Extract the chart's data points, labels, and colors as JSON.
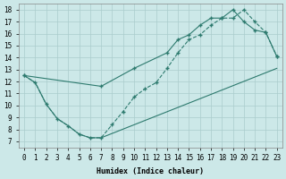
{
  "xlabel": "Humidex (Indice chaleur)",
  "background_color": "#cce8e8",
  "grid_color": "#aacccc",
  "line_color": "#2d7a6e",
  "xlim": [
    -0.5,
    23.5
  ],
  "ylim": [
    6.5,
    18.5
  ],
  "xticks": [
    0,
    1,
    2,
    3,
    4,
    5,
    6,
    7,
    8,
    9,
    10,
    11,
    12,
    13,
    14,
    15,
    16,
    17,
    18,
    19,
    20,
    21,
    22,
    23
  ],
  "yticks": [
    7,
    8,
    9,
    10,
    11,
    12,
    13,
    14,
    15,
    16,
    17,
    18
  ],
  "dashed_curve_x": [
    0,
    1,
    2,
    3,
    4,
    5,
    6,
    7,
    8,
    9,
    10,
    11,
    12,
    13,
    14,
    15,
    16,
    17,
    18,
    19,
    20,
    21,
    22,
    23
  ],
  "dashed_curve_y": [
    12.5,
    11.9,
    10.1,
    8.9,
    8.3,
    7.6,
    7.3,
    7.3,
    8.4,
    9.5,
    10.7,
    11.4,
    11.9,
    13.1,
    14.4,
    15.5,
    15.9,
    16.7,
    17.3,
    17.3,
    18.0,
    17.0,
    16.1,
    14.1
  ],
  "solid_upper_x": [
    0,
    7,
    10,
    13,
    14,
    15,
    16,
    17,
    18,
    19,
    20,
    21,
    22,
    23
  ],
  "solid_upper_y": [
    12.5,
    11.6,
    13.1,
    14.4,
    15.5,
    15.9,
    16.7,
    17.3,
    17.3,
    18.0,
    17.0,
    16.3,
    16.1,
    14.1
  ],
  "solid_lower_x": [
    0,
    1,
    2,
    3,
    4,
    5,
    6,
    7,
    23
  ],
  "solid_lower_y": [
    12.5,
    11.9,
    10.1,
    8.9,
    8.3,
    7.6,
    7.3,
    7.3,
    13.1
  ]
}
